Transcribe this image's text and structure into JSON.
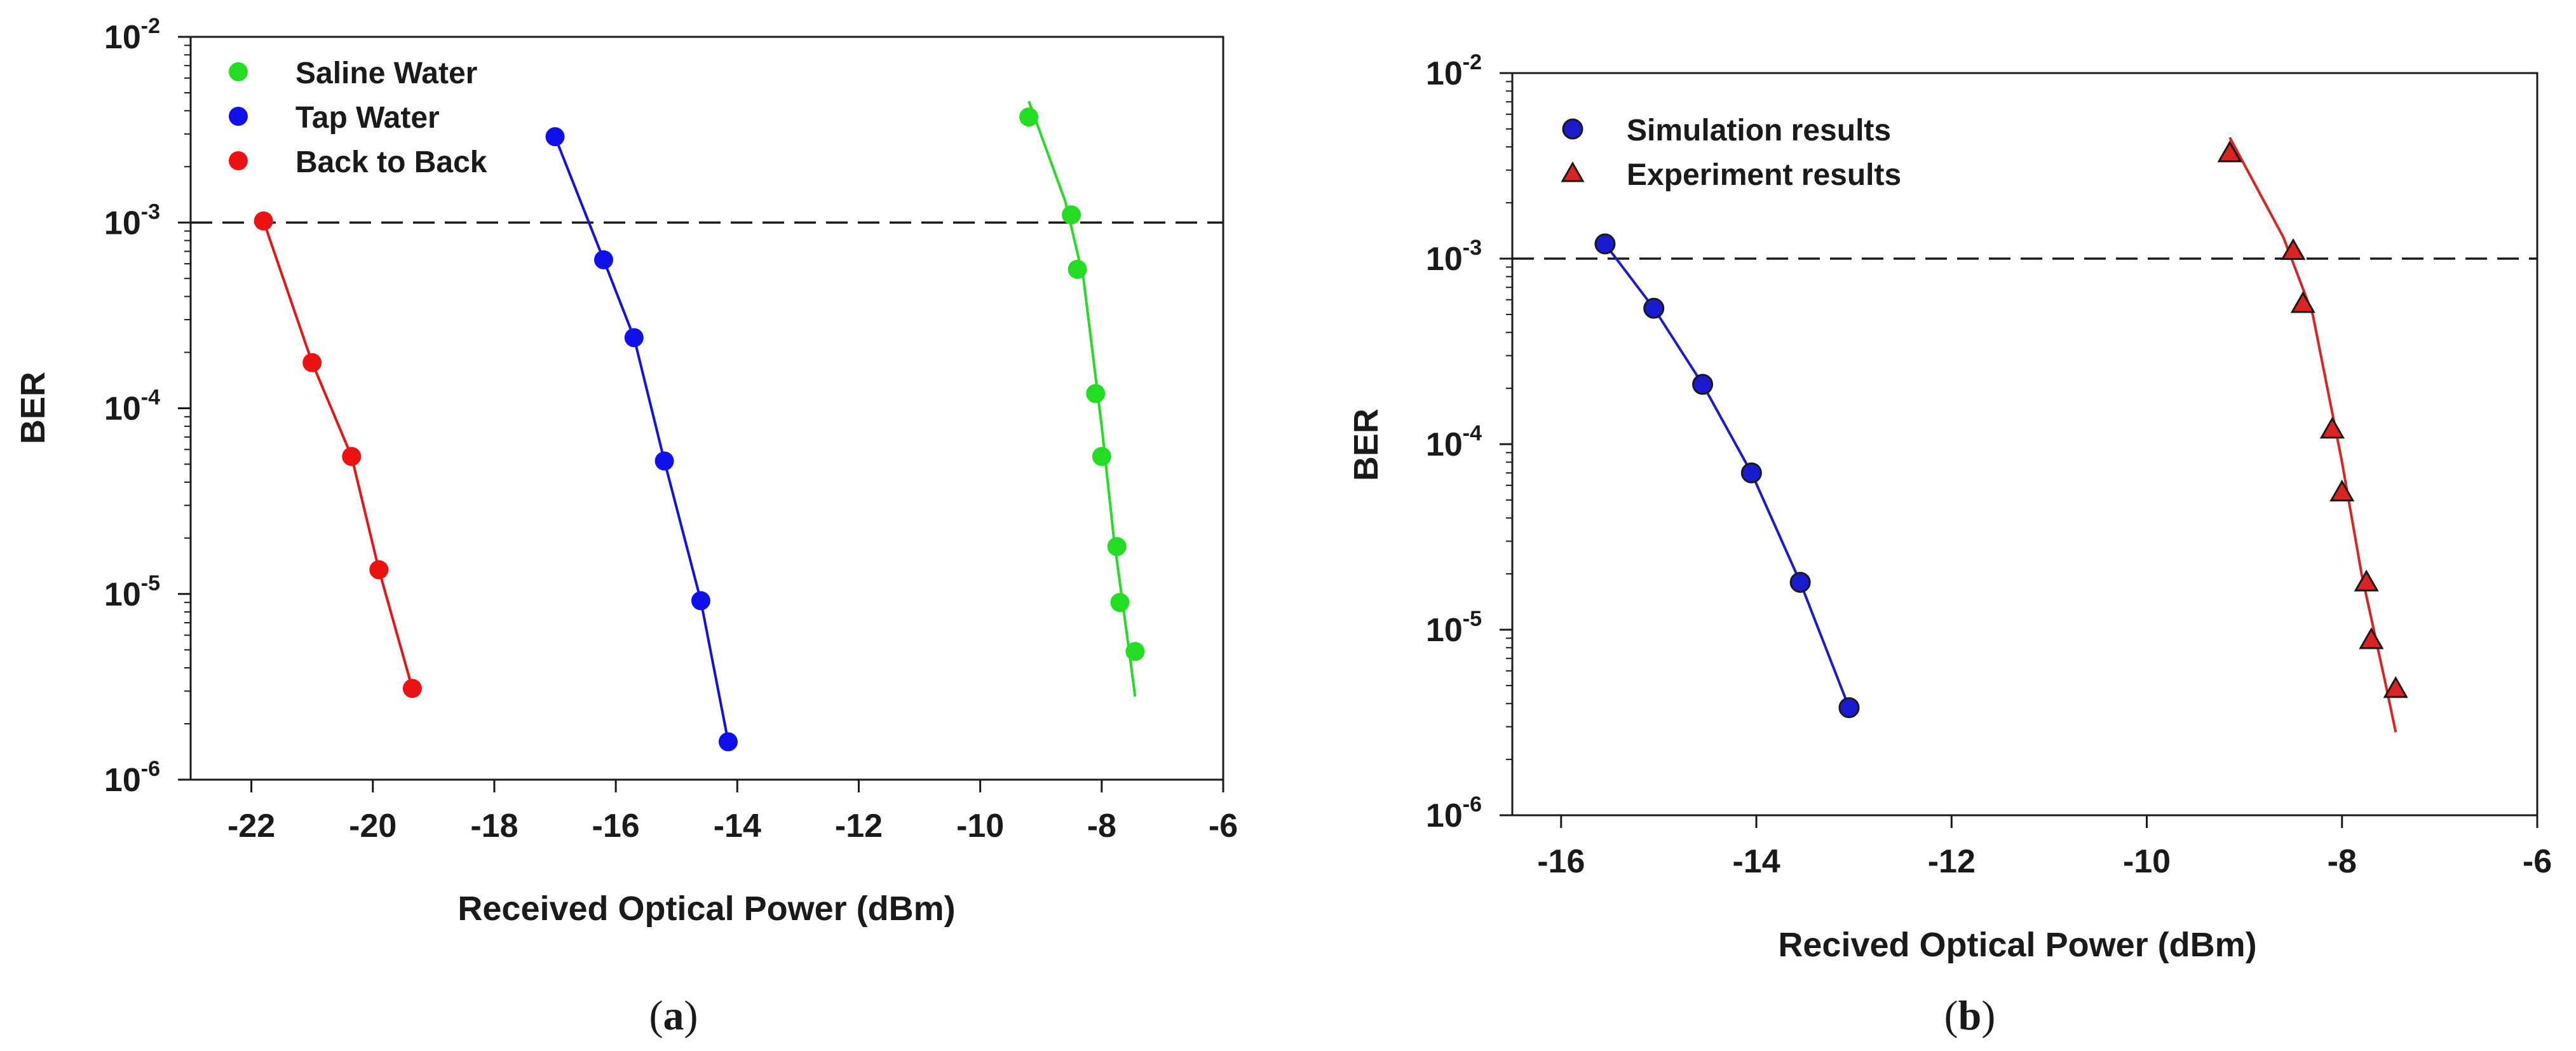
{
  "chart_data": [
    {
      "panel_label": "a",
      "type": "scatter",
      "xlabel": "Received Optical Power (dBm)",
      "ylabel": "BER",
      "xlim": [
        -23,
        -6
      ],
      "ylim_log10": [
        -6,
        -2
      ],
      "x_ticks": [
        -22,
        -20,
        -18,
        -16,
        -14,
        -12,
        -10,
        -8,
        -6
      ],
      "y_tick_exponents": [
        -6,
        -5,
        -4,
        -3,
        -2
      ],
      "y_tick_base": "10",
      "threshold": 0.001,
      "legend_position": "top-left",
      "series": [
        {
          "name": "Saline Water",
          "color": "#22dd22",
          "marker": "circle",
          "points": [
            [
              -9.2,
              0.0037
            ],
            [
              -8.5,
              0.0011
            ],
            [
              -8.4,
              0.00056
            ],
            [
              -8.1,
              0.00012
            ],
            [
              -8.0,
              5.5e-05
            ],
            [
              -7.75,
              1.8e-05
            ],
            [
              -7.7,
              9e-06
            ],
            [
              -7.45,
              4.9e-06
            ]
          ],
          "fit": [
            [
              -9.2,
              0.0045
            ],
            [
              -8.6,
              0.0013
            ],
            [
              -8.3,
              0.0005
            ],
            [
              -8.0,
              8e-05
            ],
            [
              -7.8,
              2e-05
            ],
            [
              -7.55,
              5e-06
            ],
            [
              -7.45,
              2.8e-06
            ]
          ]
        },
        {
          "name": "Tap Water",
          "color": "#1010ee",
          "marker": "circle",
          "points": [
            [
              -17.0,
              0.0029
            ],
            [
              -16.2,
              0.00063
            ],
            [
              -15.7,
              0.00024
            ],
            [
              -15.2,
              5.2e-05
            ],
            [
              -14.6,
              9.2e-06
            ],
            [
              -14.15,
              1.6e-06
            ]
          ],
          "fit": [
            [
              -17.0,
              0.0029
            ],
            [
              -16.2,
              0.00063
            ],
            [
              -15.7,
              0.00024
            ],
            [
              -15.2,
              5.2e-05
            ],
            [
              -14.6,
              9.2e-06
            ],
            [
              -14.15,
              1.6e-06
            ]
          ]
        },
        {
          "name": "Back to Back",
          "color": "#ee1111",
          "marker": "circle",
          "points": [
            [
              -21.8,
              0.00102
            ],
            [
              -21.0,
              0.000176
            ],
            [
              -20.35,
              5.5e-05
            ],
            [
              -19.9,
              1.35e-05
            ],
            [
              -19.35,
              3.1e-06
            ]
          ],
          "fit": [
            [
              -21.8,
              0.00102
            ],
            [
              -21.0,
              0.000176
            ],
            [
              -20.35,
              5.5e-05
            ],
            [
              -19.9,
              1.35e-05
            ],
            [
              -19.35,
              3.1e-06
            ]
          ]
        }
      ]
    },
    {
      "panel_label": "b",
      "type": "scatter",
      "xlabel": "Recived Optical Power (dBm)",
      "ylabel": "BER",
      "xlim": [
        -16.5,
        -6
      ],
      "ylim_log10": [
        -6,
        -2
      ],
      "x_ticks": [
        -16,
        -14,
        -12,
        -10,
        -8,
        -6
      ],
      "y_tick_exponents": [
        -6,
        -5,
        -4,
        -3,
        -2
      ],
      "y_tick_base": "10",
      "threshold": 0.001,
      "legend_position": "top-left",
      "series": [
        {
          "name": "Simulation results",
          "color": "#1a1ad0",
          "marker": "circle",
          "points": [
            [
              -15.55,
              0.0012
            ],
            [
              -15.05,
              0.00054
            ],
            [
              -14.55,
              0.00021
            ],
            [
              -14.05,
              7e-05
            ],
            [
              -13.55,
              1.8e-05
            ],
            [
              -13.05,
              3.8e-06
            ]
          ],
          "fit": [
            [
              -15.6,
              0.0013
            ],
            [
              -15.05,
              0.00054
            ],
            [
              -14.55,
              0.00021
            ],
            [
              -14.05,
              7e-05
            ],
            [
              -13.55,
              1.8e-05
            ],
            [
              -13.05,
              3.8e-06
            ]
          ]
        },
        {
          "name": "Experiment results",
          "color": "#dd2222",
          "marker": "triangle",
          "points": [
            [
              -9.15,
              0.0037
            ],
            [
              -8.5,
              0.0011
            ],
            [
              -8.4,
              0.00057
            ],
            [
              -8.1,
              0.00012
            ],
            [
              -8.0,
              5.5e-05
            ],
            [
              -7.75,
              1.8e-05
            ],
            [
              -7.7,
              8.8e-06
            ],
            [
              -7.45,
              4.8e-06
            ]
          ],
          "fit": [
            [
              -9.15,
              0.0045
            ],
            [
              -8.6,
              0.0013
            ],
            [
              -8.3,
              0.0005
            ],
            [
              -8.0,
              8e-05
            ],
            [
              -7.8,
              2e-05
            ],
            [
              -7.55,
              5e-06
            ],
            [
              -7.45,
              2.8e-06
            ]
          ]
        }
      ]
    }
  ]
}
